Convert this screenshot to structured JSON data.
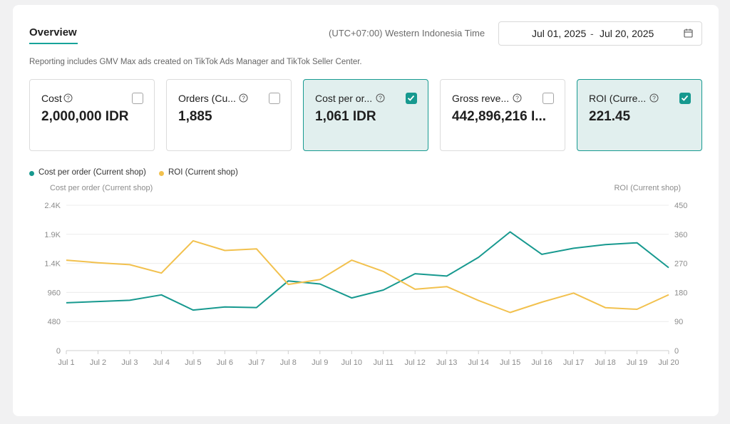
{
  "header": {
    "tab_label": "Overview",
    "timezone": "(UTC+07:00) Western Indonesia Time",
    "date_start": "Jul 01, 2025",
    "date_separator": "-",
    "date_end": "Jul 20, 2025"
  },
  "note": "Reporting includes GMV Max ads created on TikTok Ads Manager and TikTok Seller Center.",
  "metrics": [
    {
      "label": "Cost",
      "value": "2,000,000 IDR",
      "selected": false
    },
    {
      "label": "Orders (Cu...",
      "value": "1,885",
      "selected": false
    },
    {
      "label": "Cost per or...",
      "value": "1,061 IDR",
      "selected": true
    },
    {
      "label": "Gross reve...",
      "value": "442,896,216 I...",
      "selected": false
    },
    {
      "label": "ROI (Curre...",
      "value": "221.45",
      "selected": true
    }
  ],
  "legend": [
    {
      "label": "Cost per order (Current shop)",
      "color": "#17998f"
    },
    {
      "label": "ROI (Current shop)",
      "color": "#f2c14e"
    }
  ],
  "chart_data": {
    "type": "line",
    "y_left_label": "Cost per order (Current shop)",
    "y_right_label": "ROI (Current shop)",
    "y_left_ticks": [
      "0",
      "480",
      "960",
      "1.4K",
      "1.9K",
      "2.4K"
    ],
    "y_right_ticks": [
      "0",
      "90",
      "180",
      "270",
      "360",
      "450"
    ],
    "ylim_left": [
      0,
      2400
    ],
    "ylim_right": [
      0,
      450
    ],
    "grid": true,
    "categories": [
      "Jul 1",
      "Jul 2",
      "Jul 3",
      "Jul 4",
      "Jul 5",
      "Jul 6",
      "Jul 7",
      "Jul 8",
      "Jul 9",
      "Jul 10",
      "Jul 11",
      "Jul 12",
      "Jul 13",
      "Jul 14",
      "Jul 15",
      "Jul 16",
      "Jul 17",
      "Jul 18",
      "Jul 19",
      "Jul 20"
    ],
    "series": [
      {
        "name": "Cost per order (Current shop)",
        "axis": "left",
        "color": "#17998f",
        "values": [
          790,
          810,
          830,
          920,
          670,
          720,
          710,
          1150,
          1100,
          870,
          1000,
          1270,
          1230,
          1540,
          1960,
          1590,
          1690,
          1750,
          1780,
          1370
        ]
      },
      {
        "name": "ROI (Current shop)",
        "axis": "right",
        "color": "#f2c14e",
        "values": [
          280,
          272,
          266,
          240,
          340,
          310,
          315,
          205,
          220,
          280,
          245,
          190,
          198,
          155,
          118,
          150,
          178,
          133,
          128,
          173
        ]
      }
    ]
  }
}
